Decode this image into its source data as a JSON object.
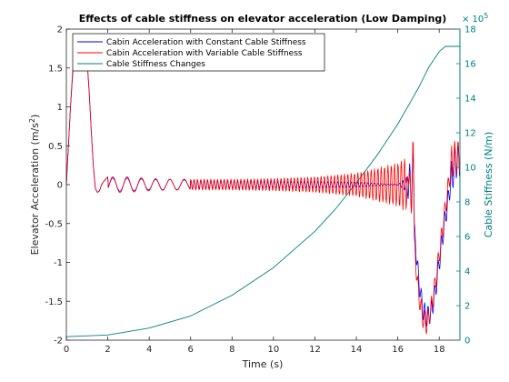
{
  "chart_data": {
    "type": "line",
    "title": "Effects of cable stiffness on elevator acceleration (Low Damping)",
    "xlabel": "Time (s)",
    "ylabel_left": "Elevator Acceleration (m/s",
    "ylabel_left_sup": "2",
    "ylabel_left_close": ")",
    "ylabel_right": "Cable Stiffness (N/m)",
    "right_axis_exponent_base": "× 10",
    "right_axis_exponent_power": "5",
    "xlim": [
      0,
      19
    ],
    "ylim_left": [
      -2,
      2
    ],
    "ylim_right": [
      0,
      18
    ],
    "x_ticks": [
      "0",
      "2",
      "4",
      "6",
      "8",
      "10",
      "12",
      "14",
      "16",
      "18"
    ],
    "y_left_ticks": [
      "-2",
      "-1.5",
      "-1",
      "-0.5",
      "0",
      "0.5",
      "1",
      "1.5",
      "2"
    ],
    "y_right_ticks": [
      "0",
      "2",
      "4",
      "6",
      "8",
      "10",
      "12",
      "14",
      "16",
      "18"
    ],
    "grid": false,
    "legend_position": "top-left",
    "series": [
      {
        "name": "Cabin Acceleration with Constant Cable Stiffness",
        "color": "#0000ff",
        "axis": "left",
        "x": [
          0,
          0.1,
          0.2,
          0.3,
          0.4,
          0.5,
          0.6,
          0.7,
          0.8,
          0.9,
          1.0,
          1.1,
          1.2,
          1.3,
          1.4,
          1.5,
          1.6,
          1.7,
          1.8,
          2.0,
          3.0,
          4.0,
          5.0,
          6.0,
          8.0,
          10.0,
          12.0,
          14.0,
          16.0,
          16.4,
          16.8,
          17.0,
          17.2,
          17.4,
          17.6,
          17.8,
          18.0,
          18.2,
          18.4,
          18.6,
          18.8,
          19.0
        ],
        "y": [
          0,
          0.5,
          1.0,
          1.4,
          1.7,
          1.75,
          1.7,
          1.68,
          1.72,
          1.75,
          1.6,
          1.2,
          0.7,
          0.25,
          -0.05,
          -0.1,
          -0.08,
          0,
          0.04,
          0.1,
          0.1,
          0.08,
          0.08,
          0.07,
          0.06,
          0.05,
          0.05,
          0.04,
          0.0,
          -0.1,
          -0.6,
          -1.2,
          -1.6,
          -1.7,
          -1.65,
          -1.4,
          -1.0,
          -0.6,
          -0.25,
          0.1,
          0.3,
          0.3
        ]
      },
      {
        "name": "Cabin Acceleration with Variable Cable Stiffness",
        "color": "#ff0000",
        "axis": "left",
        "x": [
          0,
          0.1,
          0.2,
          0.3,
          0.4,
          0.5,
          0.6,
          0.7,
          0.8,
          0.9,
          1.0,
          1.1,
          1.2,
          1.3,
          1.4,
          1.5,
          1.6,
          1.7,
          1.8,
          2.0,
          3.0,
          4.0,
          5.0,
          6.0,
          8.0,
          10.0,
          12.0,
          14.0,
          16.0,
          16.4,
          16.8,
          17.0,
          17.2,
          17.4,
          17.6,
          17.8,
          18.0,
          18.2,
          18.4,
          18.6,
          18.8,
          19.0
        ],
        "y": [
          0,
          0.5,
          1.0,
          1.45,
          1.75,
          1.8,
          1.7,
          1.62,
          1.7,
          1.8,
          1.6,
          1.2,
          0.7,
          0.25,
          -0.05,
          -0.1,
          -0.08,
          0,
          0.04,
          0.1,
          0.1,
          0.08,
          0.07,
          0.07,
          0.07,
          0.08,
          0.1,
          0.15,
          0.28,
          0.35,
          -0.8,
          -1.4,
          -1.7,
          -1.8,
          -1.6,
          -1.3,
          -0.9,
          -0.5,
          -0.1,
          0.3,
          0.35,
          0.35
        ]
      },
      {
        "name": "Cable Stiffness Changes",
        "color": "#008080",
        "axis": "right",
        "x": [
          0,
          2,
          4,
          6,
          8,
          10,
          12,
          13,
          14,
          15,
          16,
          17,
          17.5,
          18,
          18.3,
          19
        ],
        "y": [
          0.2,
          0.3,
          0.7,
          1.4,
          2.6,
          4.2,
          6.3,
          7.6,
          9.1,
          10.7,
          12.5,
          14.6,
          15.8,
          16.7,
          17.0,
          17.0
        ]
      }
    ]
  }
}
